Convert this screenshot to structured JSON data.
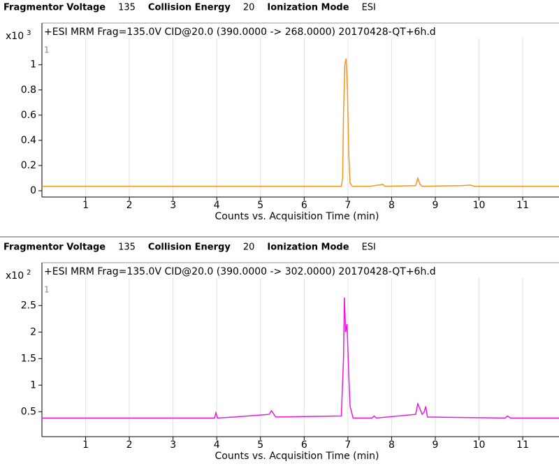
{
  "chart_data": [
    {
      "type": "line",
      "header": [
        {
          "label": "Fragmentor Voltage",
          "value": 135
        },
        {
          "label": "Collision Energy",
          "value": 20
        },
        {
          "label": "Ionization Mode",
          "value": "ESI"
        }
      ],
      "title": "+ESI MRM Frag=135.0V CID@20.0 (390.0000 -> 268.0000) 20170428-QT+6h.d",
      "panel_label": "1",
      "y_multiplier_base": "x10",
      "y_exponent": 3,
      "x_label": "Counts vs. Acquisition Time (min)",
      "xlim": [
        0,
        11.83
      ],
      "xticks": [
        1,
        2,
        3,
        4,
        5,
        6,
        7,
        8,
        9,
        10,
        11
      ],
      "ylim": [
        -0.05,
        1.32
      ],
      "yticks": [
        0,
        0.2,
        0.4,
        0.6,
        0.8,
        1
      ],
      "grid": true,
      "x": [
        0,
        6.85,
        6.88,
        6.9,
        6.93,
        6.96,
        6.99,
        7.02,
        7.05,
        7.1,
        7.5,
        7.8,
        7.85,
        8.55,
        8.6,
        8.65,
        8.7,
        9.6,
        9.8,
        9.9,
        11.83
      ],
      "series": [
        {
          "color": "#f7941d",
          "values": [
            0.035,
            0.035,
            0.1,
            0.6,
            1.0,
            1.05,
            0.8,
            0.3,
            0.06,
            0.035,
            0.035,
            0.05,
            0.035,
            0.04,
            0.1,
            0.05,
            0.035,
            0.04,
            0.045,
            0.035,
            0.035
          ]
        }
      ]
    },
    {
      "type": "line",
      "header": [
        {
          "label": "Fragmentor Voltage",
          "value": 135
        },
        {
          "label": "Collision Energy",
          "value": 20
        },
        {
          "label": "Ionization Mode",
          "value": "ESI"
        }
      ],
      "title": "+ESI MRM Frag=135.0V CID@20.0 (390.0000 -> 302.0000) 20170428-QT+6h.d",
      "panel_label": "1",
      "y_multiplier_base": "x10",
      "y_exponent": 2,
      "x_label": "Counts vs. Acquisition Time (min)",
      "xlim": [
        0,
        11.83
      ],
      "xticks": [
        1,
        2,
        3,
        4,
        5,
        6,
        7,
        8,
        9,
        10,
        11
      ],
      "ylim": [
        0.03,
        3.28
      ],
      "yticks": [
        0.5,
        1,
        1.5,
        2,
        2.5
      ],
      "grid": true,
      "x": [
        0,
        3.95,
        3.98,
        4.02,
        4.4,
        5.2,
        5.25,
        5.35,
        6.85,
        6.9,
        6.92,
        6.95,
        6.98,
        7.02,
        7.05,
        7.12,
        7.55,
        7.6,
        7.65,
        8.55,
        8.6,
        8.7,
        8.75,
        8.78,
        8.82,
        10.6,
        10.65,
        10.72,
        11.83
      ],
      "series": [
        {
          "color": "#e619e6",
          "values": [
            0.38,
            0.38,
            0.48,
            0.38,
            0.4,
            0.45,
            0.52,
            0.4,
            0.42,
            1.5,
            2.65,
            2.0,
            2.15,
            1.2,
            0.6,
            0.38,
            0.38,
            0.42,
            0.38,
            0.45,
            0.65,
            0.45,
            0.5,
            0.6,
            0.4,
            0.38,
            0.42,
            0.38,
            0.38
          ]
        }
      ]
    }
  ]
}
